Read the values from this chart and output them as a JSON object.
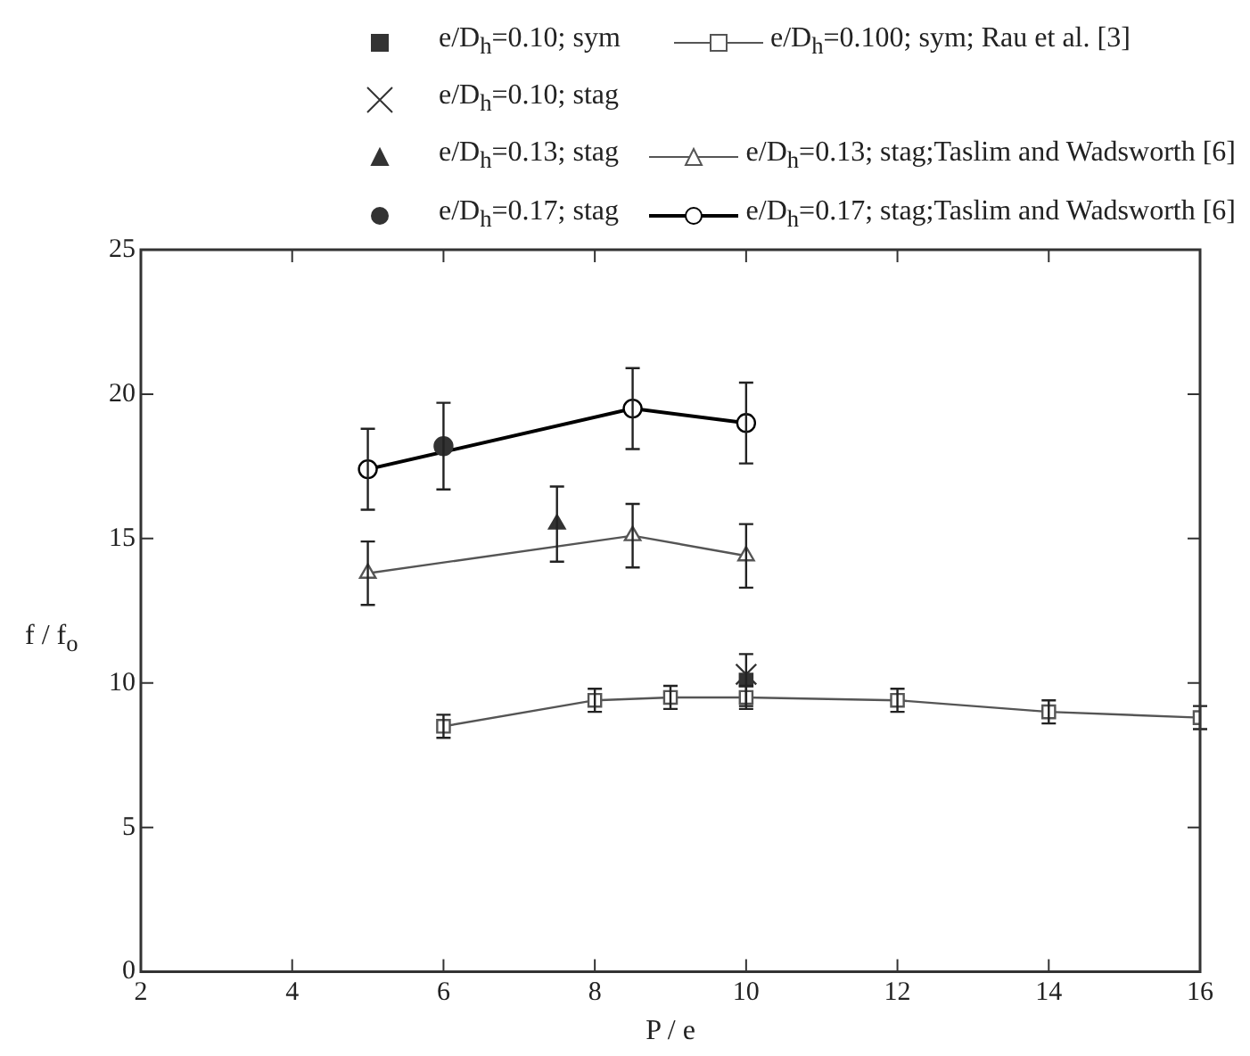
{
  "chart_data": {
    "type": "line",
    "xlabel": "P / e",
    "ylabel": "f / f$_{o}$",
    "xlim": [
      2,
      16
    ],
    "xticks": [
      2,
      4,
      6,
      8,
      10,
      12,
      14,
      16
    ],
    "ylim": [
      0,
      25
    ],
    "yticks": [
      0,
      5,
      10,
      15,
      20,
      25
    ],
    "grid": false,
    "legend": "top",
    "series": [
      {
        "name": "e/D$_{h}$=0.10; sym",
        "type": "scatter",
        "marker": "square",
        "color": "#333333",
        "x": [
          10
        ],
        "values": [
          10.1
        ],
        "errors": [
          0.9
        ]
      },
      {
        "name": "e/D$_{h}$=0.10; stag",
        "type": "scatter",
        "marker": "cross",
        "color": "#333333",
        "x": [
          10
        ],
        "values": [
          10.3
        ],
        "errors": [
          null
        ]
      },
      {
        "name": "e/D$_{h}$=0.13; stag",
        "type": "scatter",
        "marker": "triangle",
        "color": "#333333",
        "x": [
          7.5
        ],
        "values": [
          15.5
        ],
        "errors": [
          1.3
        ]
      },
      {
        "name": "e/D$_{h}$=0.17; stag",
        "type": "scatter",
        "marker": "circle",
        "color": "#333333",
        "x": [
          6
        ],
        "values": [
          18.2
        ],
        "errors": [
          1.5
        ]
      },
      {
        "name": "e/D$_{h}$=0.100; sym; Rau et al. [3]",
        "marker": "square",
        "color": "#555555",
        "x": [
          6,
          8,
          9,
          10,
          12,
          14,
          16
        ],
        "values": [
          8.5,
          9.4,
          9.5,
          9.5,
          9.4,
          9.0,
          8.8
        ],
        "errors": [
          0.4,
          0.4,
          0.4,
          0.4,
          0.4,
          0.4,
          0.4
        ]
      },
      {
        "name": "e/D$_{h}$=0.13; stag;Taslim and Wadsworth [6]",
        "marker": "triangle",
        "color": "#555555",
        "x": [
          5,
          8.5,
          10
        ],
        "values": [
          13.8,
          15.1,
          14.4
        ],
        "errors": [
          1.1,
          1.1,
          1.1
        ]
      },
      {
        "name": "e/D$_{h}$=0.17; stag;Taslim and Wadsworth [6]",
        "marker": "circle",
        "color": "#000000",
        "x": [
          5,
          8.5,
          10
        ],
        "values": [
          17.4,
          19.5,
          19.0
        ],
        "errors": [
          1.4,
          1.4,
          1.4
        ]
      }
    ]
  }
}
